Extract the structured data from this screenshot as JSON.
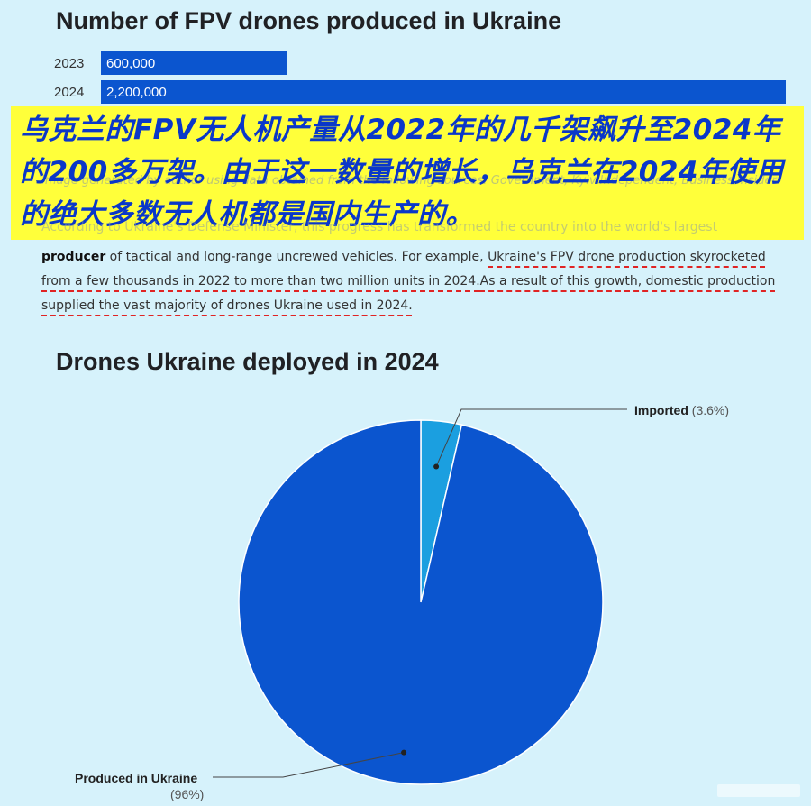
{
  "chart_data": [
    {
      "type": "bar",
      "orientation": "horizontal",
      "title": "Number of FPV drones produced in Ukraine",
      "categories": [
        "2023",
        "2024"
      ],
      "values": [
        600000,
        2200000
      ],
      "value_labels": [
        "600,000",
        "2,200,000"
      ],
      "xlim": [
        0,
        2200000
      ],
      "color": "#0b55cf"
    },
    {
      "type": "pie",
      "title": "Drones Ukraine deployed in 2024",
      "slices": [
        {
          "label": "Imported",
          "pct_text": "(3.6%)",
          "value": 3.6,
          "color": "#1b9fe0"
        },
        {
          "label": "Produced in Ukraine",
          "pct_text": "(96%)",
          "value": 96.4,
          "color": "#0b55cf"
        }
      ]
    }
  ],
  "overlay": {
    "chinese_caption": "乌克兰的FPV无人机产量从2022年的几千架飙升至2024年的200多万架。由于这一数量的增长，乌克兰在2024年使用的绝大多数无人机都是国内生产的。",
    "box_color": "#ffff3a",
    "text_color": "#0a37c9"
  },
  "article": {
    "faded_line_1": "Image generated by author using data obtained from the following sources: Government, Kyiv Independent, Business Insider",
    "faded_line_2": "According to Ukraine's Defense Minister, this progress has transformed the country into the world's largest",
    "bold_word": "producer",
    "text_1": " of tactical and long-range uncrewed vehicles. For example, ",
    "underlined_1": "Ukraine's FPV drone production skyrocketed from a few thousands in 2022 to more than two million units in 2024.",
    "underlined_2": "As a result of this growth, domestic production supplied the vast majority of drones Ukraine used in 2024."
  }
}
